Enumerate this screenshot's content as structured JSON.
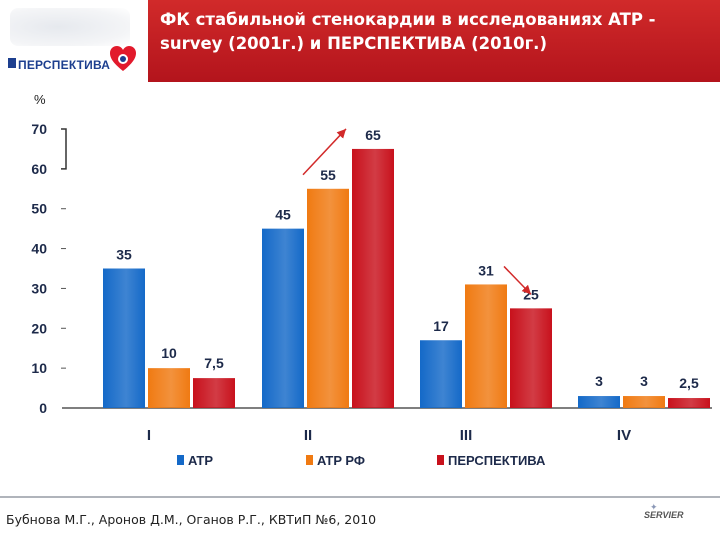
{
  "header": {
    "title": "ФК стабильной стенокардии в исследованиях ATP - survey (2001г.) и ПЕРСПЕКТИВА (2010г.)",
    "logo_text": "ПЕРСПЕКТИВА"
  },
  "footer": {
    "citation": "Бубнова М.Г., Аронов Д.М., Оганов Р.Г., КВТиП №6, 2010",
    "brand": "SERVIER"
  },
  "colors": {
    "header_red": "#c21d23",
    "blue": "#1469c8",
    "orange": "#f07a12",
    "red": "#c8111c",
    "arrow": "#d22a2a"
  },
  "chart_data": {
    "type": "bar",
    "ylabel": "%",
    "ylim": [
      0,
      70
    ],
    "yticks": [
      "0",
      "10",
      "20",
      "30",
      "40",
      "50",
      "60",
      "70"
    ],
    "categories": [
      "I",
      "II",
      "III",
      "IV"
    ],
    "series": [
      {
        "name": "ATP",
        "values": [
          35,
          45,
          17,
          3
        ],
        "labels": [
          "35",
          "45",
          "17",
          "3"
        ],
        "color": "#1469c8"
      },
      {
        "name": "ATP РФ",
        "values": [
          10,
          55,
          31,
          3
        ],
        "labels": [
          "10",
          "55",
          "31",
          "3"
        ],
        "color": "#f07a12"
      },
      {
        "name": "ПЕРСПЕКТИВА",
        "values": [
          7.5,
          65,
          25,
          2.5
        ],
        "labels": [
          "7,5",
          "65",
          "25",
          "2,5"
        ],
        "color": "#c8111c"
      }
    ],
    "legend_position": "bottom",
    "grid": false,
    "annotations": [
      {
        "type": "arrow",
        "category": "II",
        "from_series": "ATP РФ",
        "to_series": "ПЕРСПЕКТИВА",
        "direction": "up"
      },
      {
        "type": "arrow",
        "category": "III",
        "from_series": "ATP РФ",
        "to_series": "ПЕРСПЕКТИВА",
        "direction": "down"
      }
    ]
  }
}
